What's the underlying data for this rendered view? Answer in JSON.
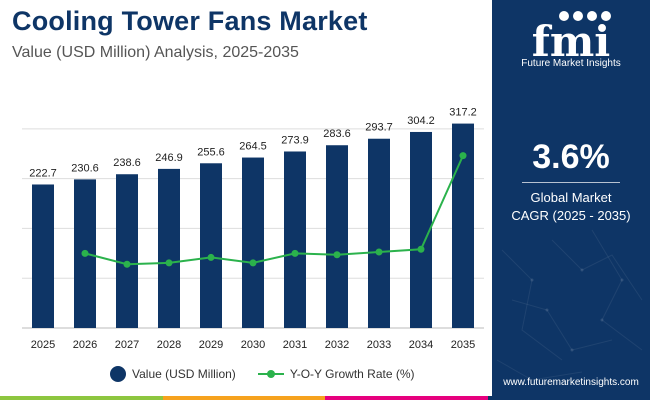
{
  "colors": {
    "navy": "#0e3566",
    "bar": "#0e3566",
    "line": "#2bb24c",
    "grid": "#dddddd",
    "strip": [
      "#8dc63f",
      "#f6a21e",
      "#e6007e",
      "#0e3566"
    ]
  },
  "panel": {
    "logo_text": "fmi",
    "logo_sub": "Future Market Insights",
    "cagr_value": "3.6%",
    "cagr_label_1": "Global Market",
    "cagr_label_2": "CAGR (2025 - 2035)",
    "website": "www.futuremarketinsights.com"
  },
  "chart_data": {
    "type": "bar",
    "title": "Cooling Tower Fans Market",
    "subtitle": "Value (USD Million) Analysis, 2025-2035",
    "categories": [
      "2025",
      "2026",
      "2027",
      "2028",
      "2029",
      "2030",
      "2031",
      "2032",
      "2033",
      "2034",
      "2035"
    ],
    "series": [
      {
        "name": "Value (USD Million)",
        "kind": "bar",
        "values": [
          222.7,
          230.6,
          238.6,
          246.9,
          255.6,
          264.5,
          273.9,
          283.6,
          293.7,
          304.2,
          317.2
        ],
        "labels": [
          "222.7",
          "230.6",
          "238.6",
          "246.9",
          "255.6",
          "264.5",
          "273.9",
          "283.6",
          "293.7",
          "304.2",
          "317.2"
        ]
      },
      {
        "name": "Y-O-Y Growth Rate (%)",
        "kind": "line",
        "values": [
          null,
          3.55,
          3.47,
          3.48,
          3.52,
          3.48,
          3.55,
          3.54,
          3.56,
          3.58,
          4.27
        ]
      }
    ],
    "ylim": [
      0,
      360
    ],
    "y2lim": [
      3.0,
      4.4
    ],
    "grid": true,
    "legend_position": "bottom"
  }
}
